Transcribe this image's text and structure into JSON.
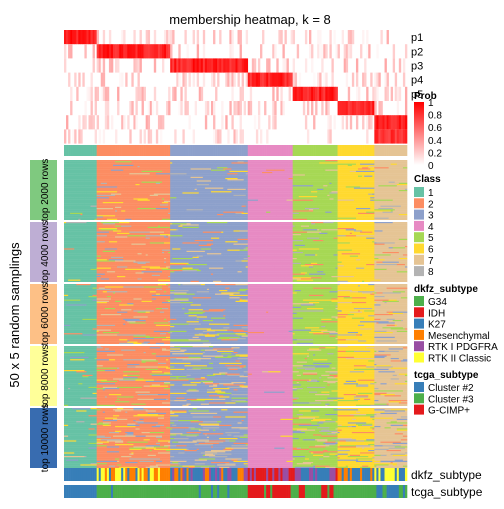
{
  "chart_data": {
    "type": "heatmap",
    "title": "membership heatmap, k = 8",
    "ylabel": "50 x 5 random samplings",
    "prob_rows": [
      "p1",
      "p2",
      "p3",
      "p4",
      "p5",
      "p6",
      "p7",
      "p8"
    ],
    "prob_row_labels": [
      "p1",
      "p2",
      "p3",
      "p4",
      "p5",
      "",
      "",
      ""
    ],
    "row_groups": [
      "top 2000 rows",
      "top 4000 rows",
      "top 6000 rows",
      "top 8000 rows",
      "top 10000 rows"
    ],
    "row_group_colors": [
      "#7FC97F",
      "#BEAED4",
      "#FDC086",
      "#FFFF99",
      "#386CB0"
    ],
    "column_class_order": [
      1,
      2,
      3,
      4,
      5,
      6,
      7
    ],
    "column_class_counts": [
      16,
      36,
      38,
      22,
      22,
      18,
      16
    ],
    "annotation_rows": [
      "dkfz_subtype",
      "tcga_subtype"
    ],
    "legends": {
      "prob": {
        "title": "Prob",
        "ticks": [
          1,
          0.8,
          0.6,
          0.4,
          0.2,
          0
        ],
        "tick_labels": [
          "1",
          "0.8",
          "0.6",
          "0.4",
          "0.2",
          "0"
        ],
        "color_low": "#FFFFFF",
        "color_high": "#FF0000"
      },
      "class": {
        "title": "Class",
        "items": [
          {
            "label": "1",
            "color": "#66C2A5"
          },
          {
            "label": "2",
            "color": "#FC8D62"
          },
          {
            "label": "3",
            "color": "#8DA0CB"
          },
          {
            "label": "4",
            "color": "#E78AC3"
          },
          {
            "label": "5",
            "color": "#A6D854"
          },
          {
            "label": "6",
            "color": "#FFD92F"
          },
          {
            "label": "7",
            "color": "#E5C494"
          },
          {
            "label": "8",
            "color": "#B3B3B3"
          }
        ]
      },
      "dkfz_subtype": {
        "title": "dkfz_subtype",
        "items": [
          {
            "label": "G34",
            "color": "#4DAF4A"
          },
          {
            "label": "IDH",
            "color": "#E41A1C"
          },
          {
            "label": "K27",
            "color": "#377EB8"
          },
          {
            "label": "Mesenchymal",
            "color": "#FF7F00"
          },
          {
            "label": "RTK I PDGFRA",
            "color": "#984EA3"
          },
          {
            "label": "RTK II Classic",
            "color": "#FFFF33"
          }
        ]
      },
      "tcga_subtype": {
        "title": "tcga_subtype",
        "items": [
          {
            "label": "Cluster #2",
            "color": "#377EB8"
          },
          {
            "label": "Cluster #3",
            "color": "#4DAF4A"
          },
          {
            "label": "G-CIMP+",
            "color": "#E41A1C"
          }
        ]
      }
    }
  }
}
